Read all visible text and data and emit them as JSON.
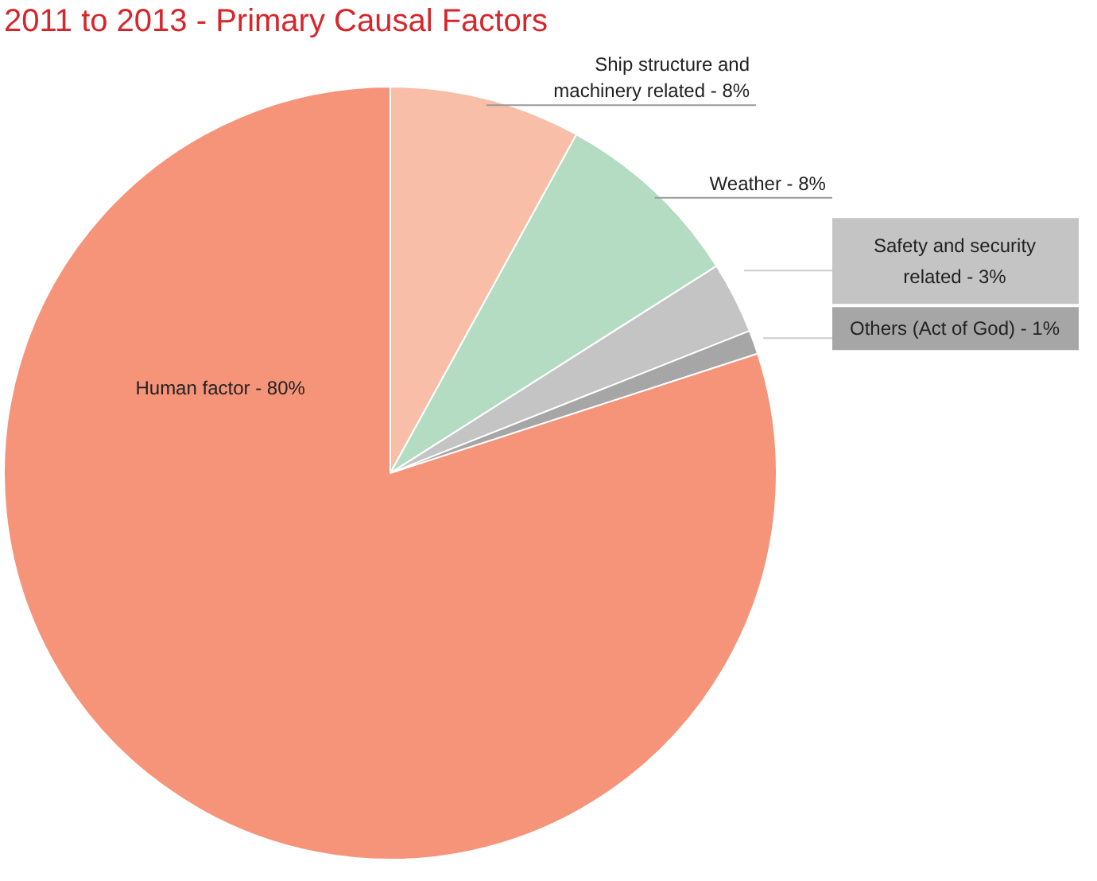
{
  "chart_data": {
    "type": "pie",
    "title": "2011 to 2013 - Primary Causal Factors",
    "categories": [
      "Ship structure and machinery related",
      "Weather",
      "Safety and security related",
      "Others (Act of God)",
      "Human factor"
    ],
    "values": [
      8,
      8,
      3,
      1,
      80
    ],
    "value_labels": [
      "8%",
      "8%",
      "3%",
      "1%",
      "80%"
    ],
    "colors": [
      "#f9bea8",
      "#b3dcc3",
      "#c4c4c4",
      "#a6a6a6",
      "#f69479"
    ]
  }
}
